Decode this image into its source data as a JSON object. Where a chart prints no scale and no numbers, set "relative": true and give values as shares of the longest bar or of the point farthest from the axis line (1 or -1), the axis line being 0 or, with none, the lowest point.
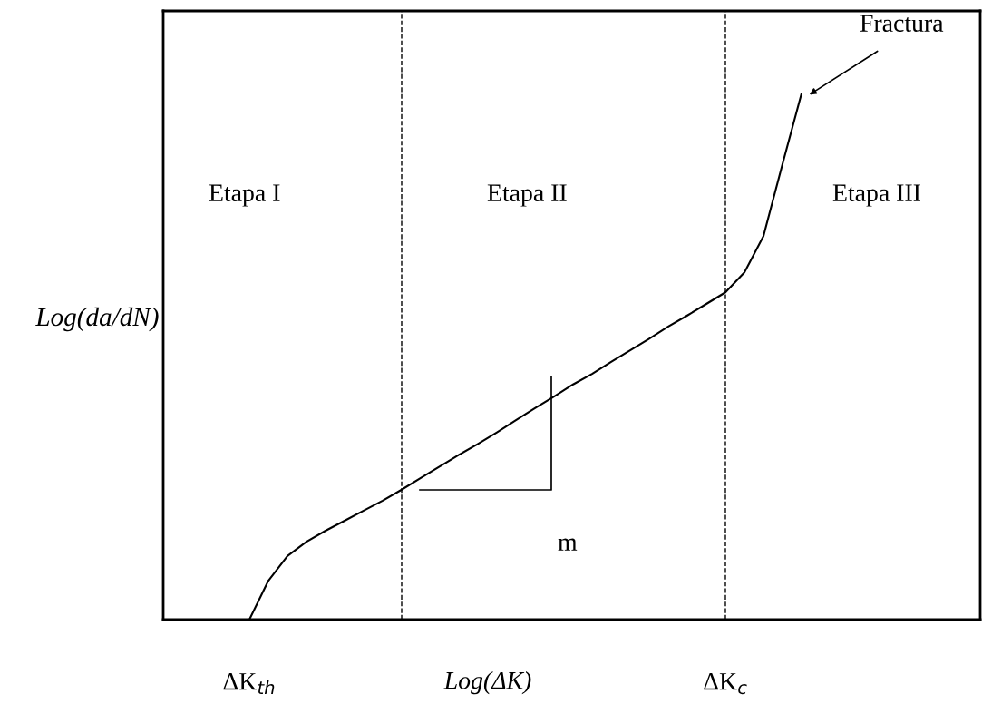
{
  "chart_data": {
    "type": "line",
    "relative": true,
    "color": "#000000",
    "xlabel": "Log(ΔK)",
    "ylabel": "Log(da/dN)",
    "categories": [
      "ΔK$_{th}$",
      null,
      null,
      null,
      null,
      null,
      null,
      null,
      null,
      null,
      null,
      null,
      null,
      null,
      null,
      null,
      null,
      null,
      null,
      null,
      null,
      null,
      null,
      null,
      null,
      "ΔK$_{c}$",
      null,
      null,
      null,
      null
    ],
    "values": [
      0,
      0.074,
      0.121,
      0.148,
      0.169,
      0.188,
      0.207,
      0.226,
      0.247,
      0.269,
      0.291,
      0.313,
      0.334,
      0.356,
      0.379,
      0.402,
      0.424,
      0.447,
      0.467,
      0.49,
      0.512,
      0.534,
      0.557,
      0.578,
      0.6,
      0.622,
      0.66,
      0.729,
      0.866,
      1
    ],
    "annotations": [
      "Etapa I",
      "Etapa II",
      "Etapa III",
      "m",
      "Fractura"
    ],
    "legend": false,
    "marker": "none",
    "line_style": "solid"
  }
}
